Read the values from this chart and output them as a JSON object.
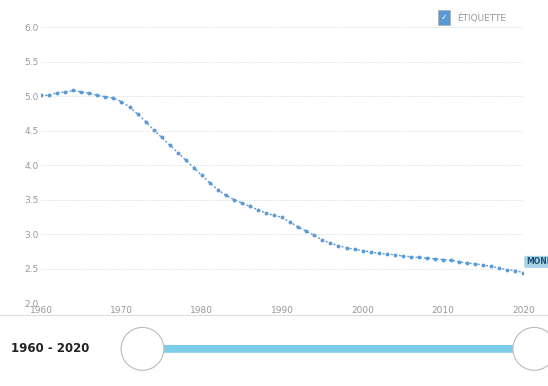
{
  "years": [
    1960,
    1961,
    1962,
    1963,
    1964,
    1965,
    1966,
    1967,
    1968,
    1969,
    1970,
    1971,
    1972,
    1973,
    1974,
    1975,
    1976,
    1977,
    1978,
    1979,
    1980,
    1981,
    1982,
    1983,
    1984,
    1985,
    1986,
    1987,
    1988,
    1989,
    1990,
    1991,
    1992,
    1993,
    1994,
    1995,
    1996,
    1997,
    1998,
    1999,
    2000,
    2001,
    2002,
    2003,
    2004,
    2005,
    2006,
    2007,
    2008,
    2009,
    2010,
    2011,
    2012,
    2013,
    2014,
    2015,
    2016,
    2017,
    2018,
    2019,
    2020
  ],
  "values": [
    5.01,
    5.01,
    5.05,
    5.06,
    5.08,
    5.06,
    5.04,
    5.01,
    4.99,
    4.97,
    4.92,
    4.84,
    4.74,
    4.63,
    4.51,
    4.4,
    4.29,
    4.18,
    4.07,
    3.96,
    3.85,
    3.74,
    3.64,
    3.56,
    3.5,
    3.45,
    3.4,
    3.35,
    3.3,
    3.27,
    3.24,
    3.17,
    3.1,
    3.04,
    2.98,
    2.91,
    2.87,
    2.83,
    2.8,
    2.78,
    2.76,
    2.74,
    2.72,
    2.71,
    2.7,
    2.68,
    2.67,
    2.66,
    2.65,
    2.64,
    2.63,
    2.62,
    2.6,
    2.58,
    2.57,
    2.55,
    2.53,
    2.51,
    2.48,
    2.47,
    2.44
  ],
  "line_color": "#5b9bd5",
  "bg_color": "#ffffff",
  "grid_color": "#d0d0d0",
  "label_text": "MONDE",
  "label_bg": "#a8d4e6",
  "label_text_color": "#1a5276",
  "legend_label": "ÉTIQUETTE",
  "ylim": [
    2.0,
    6.0
  ],
  "yticks": [
    2.0,
    2.5,
    3.0,
    3.5,
    4.0,
    4.5,
    5.0,
    5.5,
    6.0
  ],
  "xlim": [
    1960,
    2020
  ],
  "xticks": [
    1960,
    1970,
    1980,
    1990,
    2000,
    2010,
    2020
  ],
  "slider_text": "1960 - 2020",
  "slider_color": "#7dcce8",
  "axis_label_color": "#999999",
  "bottom_bg": "#f0f0f0",
  "separator_color": "#dddddd"
}
